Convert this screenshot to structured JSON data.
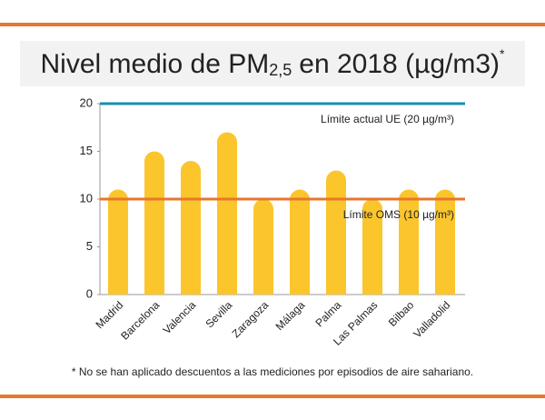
{
  "chart_data": {
    "type": "bar",
    "title": "Nivel medio de PM",
    "title_subscript": "2,5",
    "title_rest": "en 2018 (µg/m3)",
    "title_mark": "*",
    "categories": [
      "Madrid",
      "Barcelona",
      "Valencia",
      "Sevilla",
      "Zaragoza",
      "Málaga",
      "Palma",
      "Las Palmas",
      "Bilbao",
      "Valladolid"
    ],
    "values": [
      11,
      15,
      14,
      17,
      10,
      11,
      13,
      10,
      11,
      11
    ],
    "color": "#fbc52c",
    "ylim": [
      0,
      20
    ],
    "yticks": [
      0,
      5,
      10,
      15,
      20
    ],
    "reference_lines": [
      {
        "value": 20,
        "label": "Límite actual UE (20 µg/m³)",
        "color": "#1b8db0"
      },
      {
        "value": 10,
        "label": "Límite OMS (10 µg/m³)",
        "color": "#e8762c"
      }
    ],
    "footnote": "* No se han aplicado descuentos a las mediciones por episodios de aire sahariano."
  }
}
